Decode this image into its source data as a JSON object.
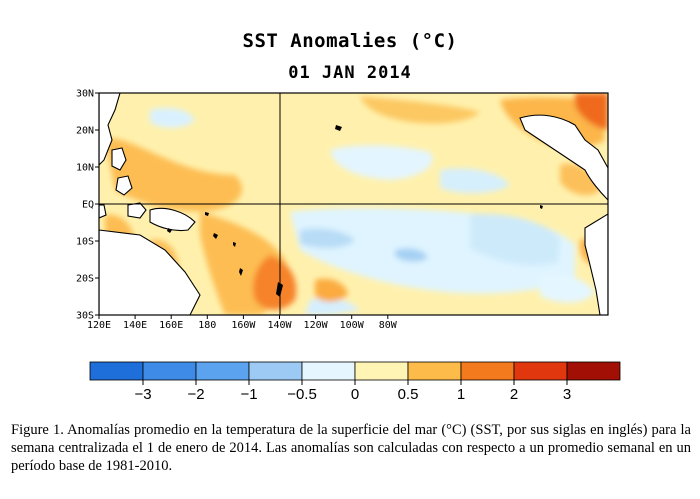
{
  "title": "SST Anomalies (°C)",
  "date": "01 JAN 2014",
  "map": {
    "region": "Tropical Pacific",
    "lat_labels": [
      "30N",
      "20N",
      "10N",
      "EQ",
      "10S",
      "20S",
      "30S"
    ],
    "lon_labels": [
      "120E",
      "140E",
      "160E",
      "180",
      "160W",
      "140W",
      "120W",
      "100W",
      "80W"
    ],
    "land_color": "#ffffff",
    "grid_lines": [
      "equator",
      "180"
    ]
  },
  "colorbar": {
    "labels": [
      "−3",
      "−2",
      "−1",
      "−0.5",
      "0",
      "0.5",
      "1",
      "2",
      "3"
    ],
    "colors": [
      "#1e6fd9",
      "#3d8be6",
      "#5ca3ef",
      "#9dcaf5",
      "#e6f6ff",
      "#fff4b3",
      "#fdbb4a",
      "#f37b1d",
      "#e0370f",
      "#a10f05"
    ]
  },
  "caption": "Figure 1. Anomalías promedio en la temperatura de la superficie del mar (°C) (SST, por sus siglas en inglés) para la semana centralizada el 1 de enero de 2014.  Las anomalías son calculadas con respecto a un promedio semanal en un período base de 1981-2010."
}
